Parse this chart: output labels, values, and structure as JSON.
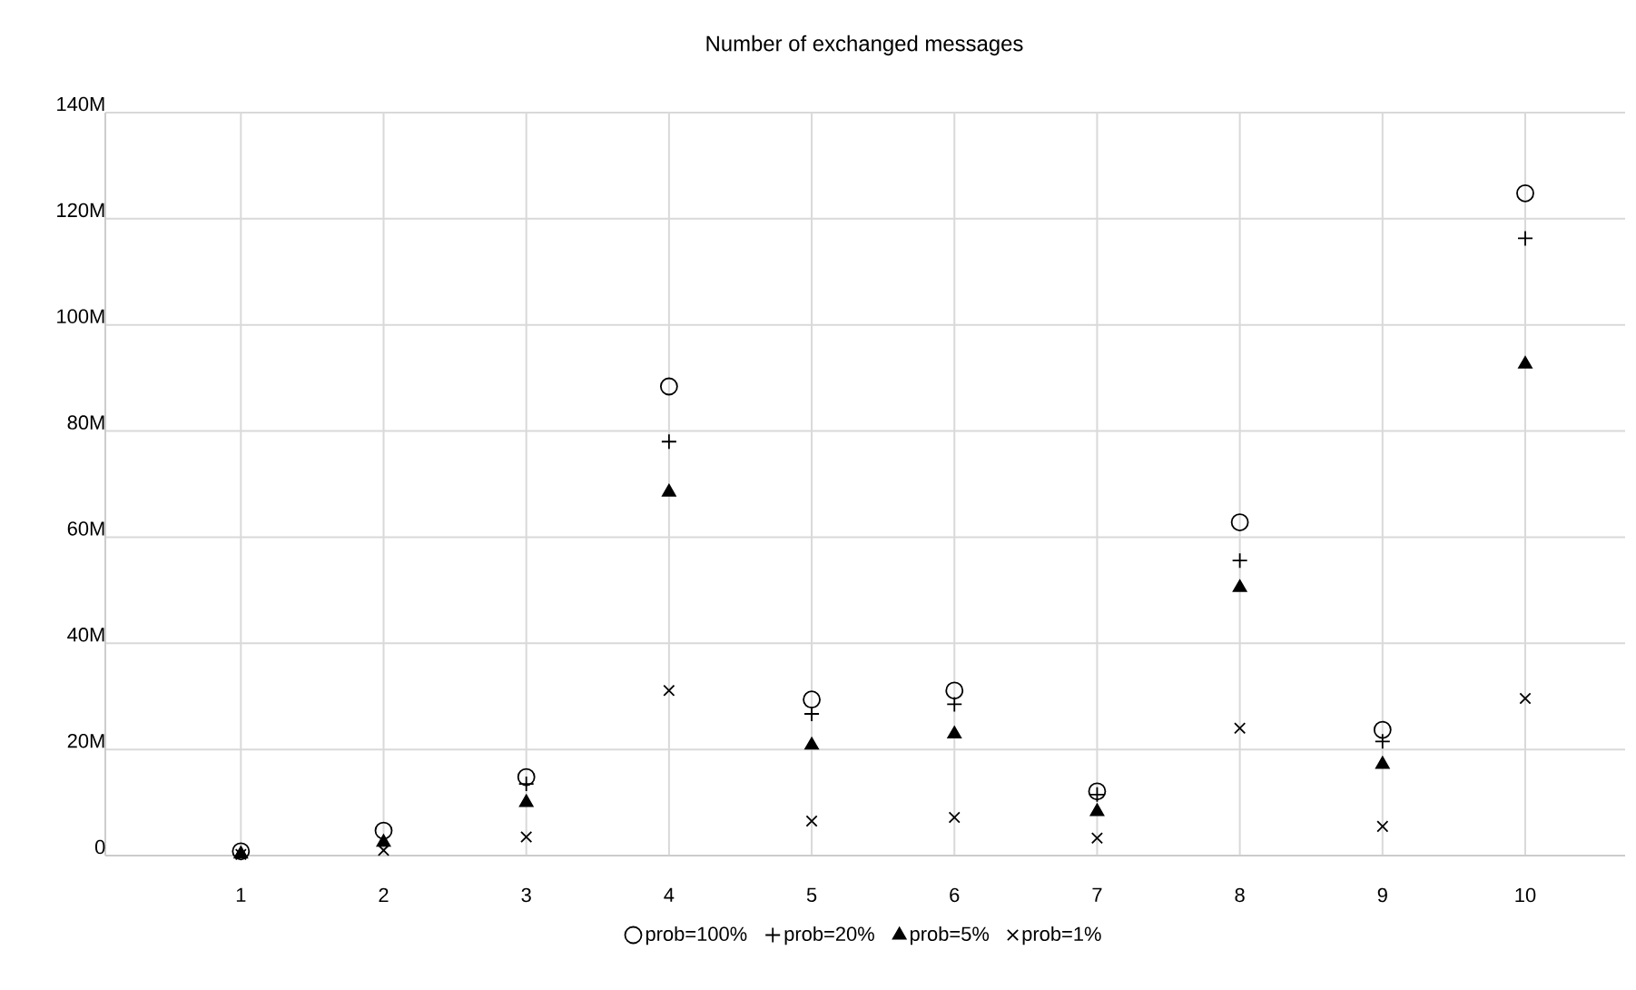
{
  "chart_data": {
    "type": "scatter",
    "title": "Number of exchanged messages",
    "categories": [
      "1",
      "2",
      "3",
      "4",
      "5",
      "6",
      "7",
      "8",
      "9",
      "10"
    ],
    "series": [
      {
        "name": "prob=100%",
        "color": "#000000",
        "marker": "circle",
        "values": [
          0.8,
          4.7,
          14.8,
          88.4,
          29.4,
          31.1,
          12.1,
          62.8,
          23.7,
          124.8
        ]
      },
      {
        "name": "prob=20%",
        "color": "#000000",
        "marker": "plus",
        "values": [
          null,
          null,
          13.5,
          78,
          26.7,
          28.5,
          11.5,
          55.6,
          21.5,
          116.3
        ]
      },
      {
        "name": "prob=5%",
        "color": "#000000",
        "marker": "triangle",
        "values": [
          0.3,
          2.5,
          10,
          68.5,
          20.8,
          22.9,
          8.3,
          50.5,
          17.2,
          92.6
        ]
      },
      {
        "name": "prob=1%",
        "color": "#000000",
        "marker": "cross",
        "values": [
          0.2,
          1,
          3.5,
          31.1,
          6.5,
          7.2,
          3.3,
          24,
          5.5,
          29.6
        ]
      }
    ],
    "ylim": [
      0,
      140
    ],
    "yticks": [
      0,
      {
        "value": 20,
        "label": "20M"
      },
      {
        "value": 40,
        "label": "40M"
      },
      {
        "value": 60,
        "label": "60M"
      },
      {
        "value": 80,
        "label": "80M"
      },
      {
        "value": 100,
        "label": "100M"
      },
      {
        "value": 120,
        "label": "120M"
      },
      {
        "value": 140,
        "label": "140M"
      }
    ],
    "grid": true,
    "legend": "bottom"
  }
}
